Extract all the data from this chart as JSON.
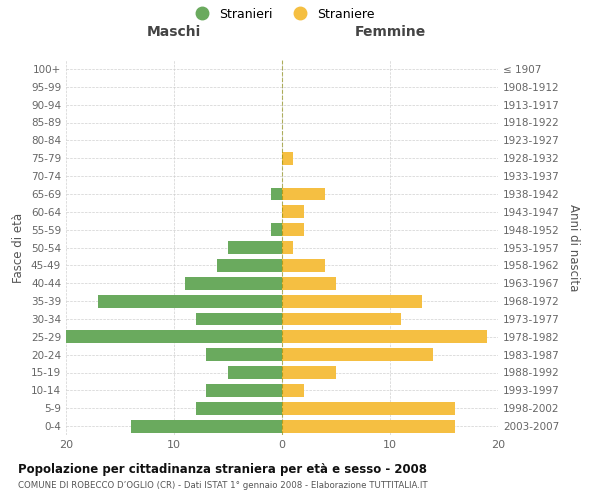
{
  "age_groups": [
    "100+",
    "95-99",
    "90-94",
    "85-89",
    "80-84",
    "75-79",
    "70-74",
    "65-69",
    "60-64",
    "55-59",
    "50-54",
    "45-49",
    "40-44",
    "35-39",
    "30-34",
    "25-29",
    "20-24",
    "15-19",
    "10-14",
    "5-9",
    "0-4"
  ],
  "birth_years": [
    "≤ 1907",
    "1908-1912",
    "1913-1917",
    "1918-1922",
    "1923-1927",
    "1928-1932",
    "1933-1937",
    "1938-1942",
    "1943-1947",
    "1948-1952",
    "1953-1957",
    "1958-1962",
    "1963-1967",
    "1968-1972",
    "1973-1977",
    "1978-1982",
    "1983-1987",
    "1988-1992",
    "1993-1997",
    "1998-2002",
    "2003-2007"
  ],
  "males": [
    0,
    0,
    0,
    0,
    0,
    0,
    0,
    1,
    0,
    1,
    5,
    6,
    9,
    17,
    8,
    20,
    7,
    5,
    7,
    8,
    14
  ],
  "females": [
    0,
    0,
    0,
    0,
    0,
    1,
    0,
    4,
    2,
    2,
    1,
    4,
    5,
    13,
    11,
    19,
    14,
    5,
    2,
    16,
    16
  ],
  "male_color": "#6aaa5e",
  "female_color": "#f5bf42",
  "background_color": "#ffffff",
  "grid_color": "#cccccc",
  "title1": "Popolazione per cittadinanza straniera per età e sesso - 2008",
  "title2": "COMUNE DI ROBECCO D’OGLIO (CR) - Dati ISTAT 1° gennaio 2008 - Elaborazione TUTTITALIA.IT",
  "ylabel_left": "Fasce di età",
  "ylabel_right": "Anni di nascita",
  "xlabel_left": "Maschi",
  "xlabel_right": "Femmine",
  "legend_stranieri": "Stranieri",
  "legend_straniere": "Straniere",
  "xlim": 20,
  "bar_height": 0.72
}
